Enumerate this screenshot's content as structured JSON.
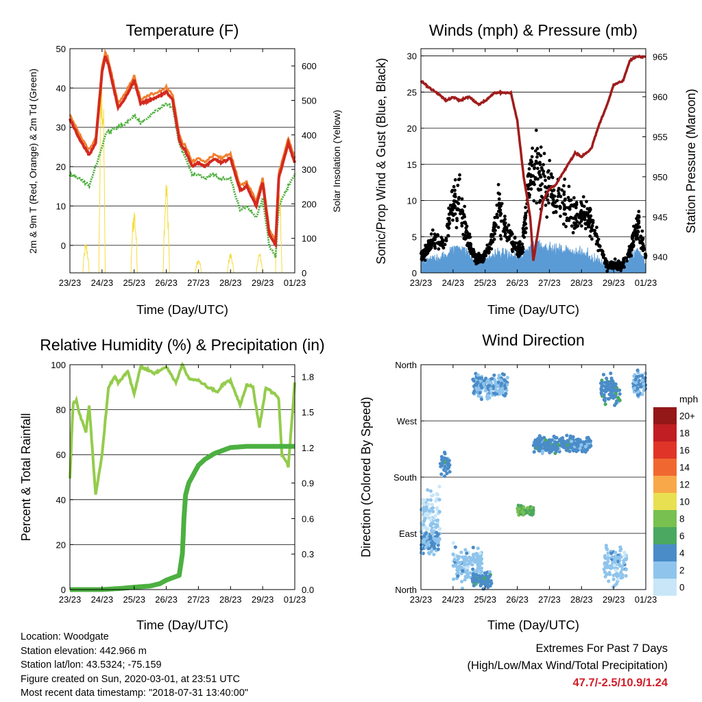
{
  "x_ticks": [
    "23/23",
    "24/23",
    "25/23",
    "26/23",
    "27/23",
    "28/23",
    "29/23",
    "01/23"
  ],
  "x_label": "Time (Day/UTC)",
  "colors": {
    "temp_2m": "#d42a1f",
    "temp_9m": "#f08030",
    "dewpoint": "#4caf3c",
    "solar": "#f6dc3c",
    "wind": "#5b9bd5",
    "gust": "#000000",
    "pressure": "#a01c1c",
    "rh": "#94cc4c",
    "precip": "#4cb040"
  },
  "chart_data": [
    {
      "type": "line",
      "title": "Temperature (F)",
      "ylabel": "2m & 9m T (Red, Orange) & 2m Td (Green)",
      "ylabel_right": "Solar Insolation (Yellow)",
      "x": [
        0,
        0.3,
        0.6,
        0.8,
        1.0,
        1.1,
        1.2,
        1.5,
        1.7,
        2.0,
        2.2,
        2.5,
        2.8,
        3.0,
        3.2,
        3.4,
        3.5,
        3.6,
        3.8,
        4.0,
        4.2,
        4.5,
        4.7,
        5.0,
        5.3,
        5.5,
        5.8,
        6.0,
        6.2,
        6.4,
        6.5,
        6.8,
        7.0
      ],
      "ylim": [
        -7,
        50
      ],
      "yticks": [
        0,
        10,
        20,
        30,
        40,
        50
      ],
      "ylim_right": [
        0,
        650
      ],
      "yticks_right": [
        0,
        100,
        200,
        300,
        400,
        500,
        600
      ],
      "series": [
        {
          "values": [
            32,
            27,
            23,
            26,
            44,
            48,
            46,
            35,
            37,
            42,
            36,
            37,
            38,
            39,
            37,
            27,
            25,
            24,
            20,
            21,
            20,
            22,
            21,
            22,
            14,
            15,
            10,
            16,
            3,
            0,
            17,
            26,
            21
          ]
        },
        {
          "values": [
            18,
            17,
            15,
            20,
            25,
            28,
            29,
            30,
            31,
            33,
            31,
            33,
            35,
            36,
            35,
            26,
            24,
            22,
            18,
            18,
            17,
            18,
            17,
            17,
            9,
            10,
            7,
            12,
            0,
            -3,
            10,
            15,
            18
          ]
        }
      ],
      "solar_peaks": [
        {
          "day": 0.5,
          "peak": 90
        },
        {
          "day": 1.0,
          "peak": 640
        },
        {
          "day": 2.0,
          "peak": 200
        },
        {
          "day": 3.0,
          "peak": 280
        },
        {
          "day": 4.0,
          "peak": 40
        },
        {
          "day": 5.0,
          "peak": 60
        },
        {
          "day": 5.9,
          "peak": 60
        },
        {
          "day": 6.5,
          "peak": 300
        }
      ]
    },
    {
      "type": "scatter",
      "title": "Winds (mph) & Pressure (mb)",
      "ylabel": "Sonic/Prop Wind & Gust (Blue, Black)",
      "ylabel_right": "Station Pressure (Maroon)",
      "ylim": [
        0,
        31
      ],
      "yticks": [
        0,
        5,
        10,
        15,
        20,
        25,
        30
      ],
      "ylim_right": [
        938,
        966
      ],
      "yticks_right": [
        940,
        945,
        950,
        955,
        960,
        965
      ],
      "wind_mean_by_hour": [
        1,
        1.5,
        2,
        2,
        3,
        3.5,
        2.5,
        1.5,
        1.5,
        2,
        2.5,
        2.5,
        2,
        2,
        3.5,
        4,
        3.5,
        3,
        3,
        3,
        2.5,
        2.5,
        2,
        1.5,
        1,
        1,
        1,
        2,
        3,
        1
      ],
      "gust_mean_by_hour": [
        2,
        3.5,
        5,
        4,
        9,
        10,
        5,
        2,
        2,
        4,
        9,
        6,
        4,
        3,
        13,
        15,
        12,
        11,
        10,
        9,
        8,
        8,
        7,
        4,
        1,
        1,
        1,
        3,
        7,
        2
      ],
      "pressure": {
        "x": [
          0,
          0.3,
          0.5,
          0.8,
          1.0,
          1.2,
          1.5,
          1.8,
          2.0,
          2.3,
          2.5,
          2.8,
          3.0,
          3.2,
          3.4,
          3.5,
          3.6,
          3.8,
          4.0,
          4.2,
          4.5,
          4.8,
          5.0,
          5.3,
          5.5,
          5.8,
          6.0,
          6.3,
          6.5,
          6.7,
          7.0
        ],
        "values": [
          962,
          961,
          960.5,
          959.5,
          960,
          959.5,
          960,
          959,
          959.5,
          960.5,
          960.5,
          960.5,
          957,
          950,
          945,
          939.5,
          942,
          947,
          948.5,
          949,
          951,
          953,
          952.5,
          953.5,
          956,
          959,
          961.5,
          962,
          964.5,
          965,
          965
        ]
      }
    },
    {
      "type": "line",
      "title": "Relative Humidity (%) & Precipitation (in)",
      "ylabel": "Percent & Total Rainfall",
      "x": [
        0,
        0.1,
        0.2,
        0.3,
        0.5,
        0.6,
        0.8,
        1.0,
        1.2,
        1.4,
        1.5,
        1.8,
        2.0,
        2.2,
        2.4,
        2.6,
        3.0,
        3.3,
        3.5,
        3.7,
        4.0,
        4.3,
        4.6,
        4.8,
        5.0,
        5.3,
        5.5,
        5.7,
        5.9,
        6.1,
        6.3,
        6.5,
        6.6,
        6.8,
        7.0
      ],
      "ylim": [
        0,
        100
      ],
      "yticks": [
        0,
        20,
        40,
        60,
        80,
        100
      ],
      "ylim_right": [
        0,
        1.9
      ],
      "yticks_right": [
        "0.0",
        "0.3",
        "0.6",
        "0.9",
        "1.2",
        "1.5",
        "1.8"
      ],
      "series": [
        {
          "values": [
            50,
            83,
            84,
            78,
            70,
            82,
            42,
            60,
            90,
            95,
            92,
            97,
            87,
            99,
            98,
            96,
            99,
            92,
            100,
            94,
            93,
            90,
            88,
            92,
            93,
            82,
            91,
            90,
            72,
            90,
            88,
            85,
            60,
            55,
            92
          ]
        }
      ],
      "precip": {
        "x": [
          0,
          1.0,
          1.6,
          2.0,
          2.5,
          2.8,
          3.0,
          3.2,
          3.4,
          3.5,
          3.55,
          3.6,
          3.7,
          3.9,
          4.0,
          4.2,
          4.5,
          4.8,
          5.0,
          5.5,
          6.0,
          6.5,
          7.0
        ],
        "values": [
          0,
          0,
          0.01,
          0.02,
          0.03,
          0.05,
          0.08,
          0.1,
          0.12,
          0.3,
          0.6,
          0.8,
          0.9,
          1.0,
          1.05,
          1.1,
          1.15,
          1.18,
          1.2,
          1.21,
          1.21,
          1.21,
          1.21
        ]
      }
    },
    {
      "type": "scatter",
      "title": "Wind Direction",
      "ylabel": "Direction (Colored By Speed)",
      "ylim": [
        0,
        360
      ],
      "yticks": [
        "North",
        "East",
        "South",
        "West",
        "North"
      ],
      "colorbar_title": "mph",
      "colorbar_labels": [
        "0",
        "2",
        "4",
        "6",
        "8",
        "10",
        "12",
        "14",
        "16",
        "18",
        "20+"
      ],
      "colorbar_colors": [
        "#c8e6f8",
        "#8fc4ec",
        "#4a8cc8",
        "#4aa860",
        "#78c050",
        "#e8e050",
        "#f8a848",
        "#f06830",
        "#e03428",
        "#c01e22",
        "#941818"
      ],
      "clusters": [
        {
          "day_from": 0.0,
          "day_to": 0.6,
          "dir": 120,
          "spread": 60,
          "speed": 1
        },
        {
          "day_from": 0.0,
          "day_to": 0.6,
          "dir": 75,
          "spread": 25,
          "speed": 3
        },
        {
          "day_from": 0.6,
          "day_to": 0.9,
          "dir": 200,
          "spread": 25,
          "speed": 4
        },
        {
          "day_from": 1.0,
          "day_to": 1.9,
          "dir": 40,
          "spread": 40,
          "speed": 2
        },
        {
          "day_from": 1.6,
          "day_to": 2.2,
          "dir": 15,
          "spread": 15,
          "speed": 4
        },
        {
          "day_from": 1.6,
          "day_to": 2.7,
          "dir": 325,
          "spread": 25,
          "speed": 3
        },
        {
          "day_from": 3.0,
          "day_to": 3.5,
          "dir": 127,
          "spread": 12,
          "speed": 7
        },
        {
          "day_from": 3.5,
          "day_to": 5.3,
          "dir": 232,
          "spread": 18,
          "speed": 4
        },
        {
          "day_from": 5.6,
          "day_to": 6.2,
          "dir": 320,
          "spread": 35,
          "speed": 4
        },
        {
          "day_from": 5.7,
          "day_to": 6.4,
          "dir": 40,
          "spread": 40,
          "speed": 2
        },
        {
          "day_from": 6.6,
          "day_to": 7.0,
          "dir": 330,
          "spread": 30,
          "speed": 3
        }
      ]
    }
  ],
  "footer": {
    "location": "Location: Woodgate",
    "elevation": "Station elevation: 442.966 m",
    "latlon": "Station lat/lon: 43.5324; -75.159",
    "created": "Figure created on Sun, 2020-03-01, at 23:51 UTC",
    "timestamp": "Most recent data timestamp: \"2018-07-31 13:40:00\"",
    "extremes_title": "Extremes For Past 7 Days",
    "extremes_legend": "(High/Low/Max Wind/Total Precipitation)",
    "extremes_values": "47.7/-2.5/10.9/1.24"
  }
}
